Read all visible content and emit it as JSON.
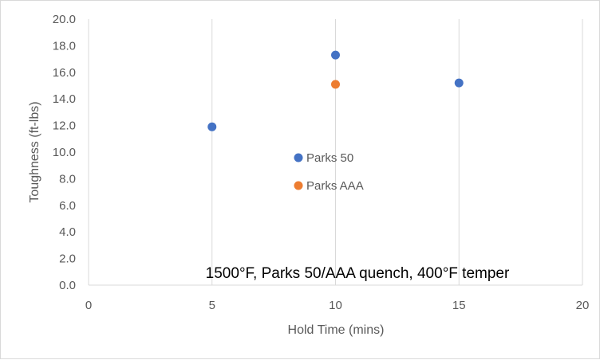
{
  "chart_data": {
    "type": "scatter",
    "title": "",
    "xlabel": "Hold Time (mins)",
    "ylabel": "Toughness (ft-lbs)",
    "xlim": [
      0,
      20
    ],
    "ylim": [
      0,
      20
    ],
    "x_ticks": [
      0,
      5,
      10,
      15,
      20
    ],
    "y_ticks": [
      0,
      2,
      4,
      6,
      8,
      10,
      12,
      14,
      16,
      18,
      20
    ],
    "x_tick_labels": [
      "0",
      "5",
      "10",
      "15",
      "20"
    ],
    "y_tick_labels": [
      "0.0",
      "2.0",
      "4.0",
      "6.0",
      "8.0",
      "10.0",
      "12.0",
      "14.0",
      "16.0",
      "18.0",
      "20.0"
    ],
    "grid": "vertical",
    "legend_position": "inside-center",
    "annotation": "1500°F, Parks 50/AAA quench, 400°F temper",
    "series": [
      {
        "name": "Parks 50",
        "color": "#4472c4",
        "points": [
          {
            "x": 5,
            "y": 11.9
          },
          {
            "x": 10,
            "y": 17.3
          },
          {
            "x": 15,
            "y": 15.2
          }
        ]
      },
      {
        "name": "Parks AAA",
        "color": "#ed7d31",
        "points": [
          {
            "x": 10,
            "y": 15.1
          }
        ]
      }
    ]
  }
}
